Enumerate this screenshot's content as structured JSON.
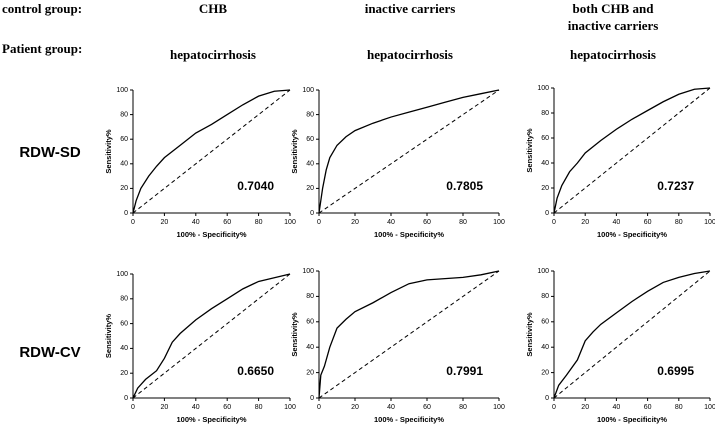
{
  "figure": {
    "control_label": "control group:",
    "patient_label": "Patient group:",
    "columns": [
      {
        "control": [
          "CHB"
        ],
        "patient": "hepatocirrhosis"
      },
      {
        "control": [
          "inactive carriers"
        ],
        "patient": "hepatocirrhosis"
      },
      {
        "control": [
          "both CHB and",
          "inactive carriers"
        ],
        "patient": "hepatocirrhosis"
      }
    ],
    "rows": [
      "RDW-SD",
      "RDW-CV"
    ]
  },
  "chart_data": [
    {
      "type": "line",
      "xlabel": "100% - Specificity%",
      "ylabel": "Sensitivity%",
      "annotation": "0.7040",
      "xlim": [
        0,
        100
      ],
      "ylim": [
        0,
        100
      ],
      "xticks": [
        0,
        20,
        40,
        60,
        80,
        100
      ],
      "yticks": [
        0,
        20,
        40,
        60,
        80,
        100
      ],
      "series": [
        {
          "color": "#000000",
          "x": [
            0,
            2,
            5,
            10,
            15,
            20,
            30,
            40,
            50,
            60,
            70,
            80,
            90,
            100
          ],
          "values": [
            0,
            10,
            20,
            30,
            38,
            45,
            55,
            65,
            72,
            80,
            88,
            95,
            99,
            100
          ]
        },
        {
          "color": "#000000",
          "dashed": true,
          "x": [
            0,
            100
          ],
          "values": [
            0,
            100
          ]
        }
      ]
    },
    {
      "type": "line",
      "xlabel": "100% - Specificity%",
      "ylabel": "Sensitivity%",
      "annotation": "0.7805",
      "xlim": [
        0,
        100
      ],
      "ylim": [
        0,
        100
      ],
      "xticks": [
        0,
        20,
        40,
        60,
        80,
        100
      ],
      "yticks": [
        0,
        20,
        40,
        60,
        80,
        100
      ],
      "series": [
        {
          "color": "#000000",
          "x": [
            0,
            1,
            2,
            4,
            6,
            10,
            15,
            20,
            30,
            40,
            50,
            60,
            70,
            80,
            90,
            100
          ],
          "values": [
            0,
            10,
            20,
            35,
            45,
            55,
            62,
            67,
            73,
            78,
            82,
            86,
            90,
            94,
            97,
            100
          ]
        },
        {
          "color": "#000000",
          "dashed": true,
          "x": [
            0,
            100
          ],
          "values": [
            0,
            100
          ]
        }
      ]
    },
    {
      "type": "line",
      "xlabel": "100% - Specificity%",
      "ylabel": "Sensitivity%",
      "annotation": "0.7237",
      "xlim": [
        0,
        100
      ],
      "ylim": [
        0,
        100
      ],
      "xticks": [
        0,
        20,
        40,
        60,
        80,
        100
      ],
      "yticks": [
        0,
        20,
        40,
        60,
        80,
        100
      ],
      "series": [
        {
          "color": "#000000",
          "x": [
            0,
            2,
            5,
            10,
            15,
            20,
            30,
            40,
            50,
            60,
            70,
            80,
            90,
            100
          ],
          "values": [
            0,
            12,
            22,
            33,
            40,
            48,
            58,
            67,
            75,
            82,
            89,
            95,
            99,
            100
          ]
        },
        {
          "color": "#000000",
          "dashed": true,
          "x": [
            0,
            100
          ],
          "values": [
            0,
            100
          ]
        }
      ]
    },
    {
      "type": "line",
      "xlabel": "100% - Specificity%",
      "ylabel": "Sensitivity%",
      "annotation": "0.6650",
      "xlim": [
        0,
        100
      ],
      "ylim": [
        0,
        100
      ],
      "xticks": [
        0,
        20,
        40,
        60,
        80,
        100
      ],
      "yticks": [
        0,
        20,
        40,
        60,
        80,
        100
      ],
      "series": [
        {
          "color": "#000000",
          "x": [
            0,
            3,
            8,
            15,
            20,
            25,
            30,
            40,
            50,
            60,
            70,
            80,
            90,
            100
          ],
          "values": [
            0,
            8,
            15,
            22,
            32,
            45,
            52,
            63,
            72,
            80,
            88,
            94,
            97,
            100
          ]
        },
        {
          "color": "#000000",
          "dashed": true,
          "x": [
            0,
            100
          ],
          "values": [
            0,
            100
          ]
        }
      ]
    },
    {
      "type": "line",
      "xlabel": "100% - Specificity%",
      "ylabel": "Sensitivity%",
      "annotation": "0.7991",
      "xlim": [
        0,
        100
      ],
      "ylim": [
        0,
        100
      ],
      "xticks": [
        0,
        20,
        40,
        60,
        80,
        100
      ],
      "yticks": [
        0,
        20,
        40,
        60,
        80,
        100
      ],
      "series": [
        {
          "color": "#000000",
          "x": [
            0,
            1,
            3,
            6,
            10,
            15,
            20,
            30,
            40,
            50,
            60,
            70,
            80,
            90,
            100
          ],
          "values": [
            0,
            18,
            25,
            40,
            55,
            62,
            68,
            75,
            83,
            90,
            93,
            94,
            95,
            97,
            100
          ]
        },
        {
          "color": "#000000",
          "dashed": true,
          "x": [
            0,
            100
          ],
          "values": [
            0,
            100
          ]
        }
      ]
    },
    {
      "type": "line",
      "xlabel": "100% - Specificity%",
      "ylabel": "Sensitivity%",
      "annotation": "0.6995",
      "xlim": [
        0,
        100
      ],
      "ylim": [
        0,
        100
      ],
      "xticks": [
        0,
        20,
        40,
        60,
        80,
        100
      ],
      "yticks": [
        0,
        20,
        40,
        60,
        80,
        100
      ],
      "series": [
        {
          "color": "#000000",
          "x": [
            0,
            3,
            8,
            15,
            20,
            25,
            30,
            40,
            50,
            60,
            70,
            80,
            90,
            100
          ],
          "values": [
            0,
            10,
            18,
            30,
            45,
            52,
            58,
            67,
            76,
            84,
            91,
            95,
            98,
            100
          ]
        },
        {
          "color": "#000000",
          "dashed": true,
          "x": [
            0,
            100
          ],
          "values": [
            0,
            100
          ]
        }
      ]
    }
  ]
}
